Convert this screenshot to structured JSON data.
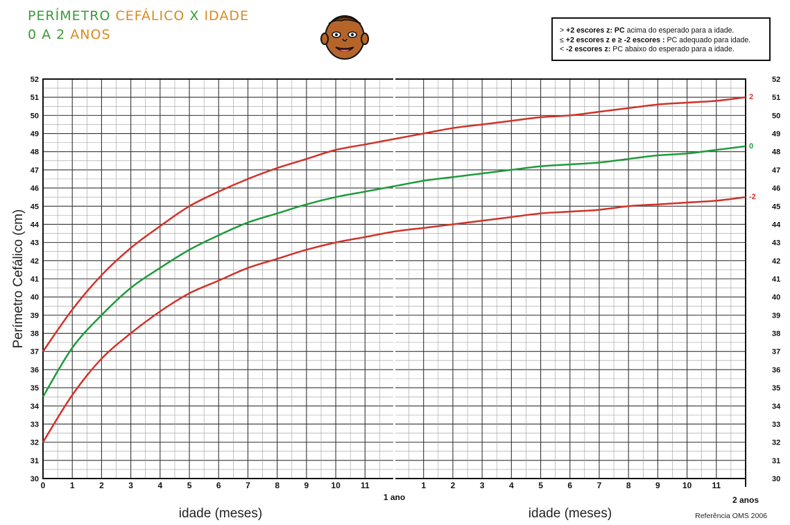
{
  "header": {
    "title_line1": [
      {
        "text": "PERÍMETRO ",
        "color": "#3a9a3a"
      },
      {
        "text": "CEFÁLICO ",
        "color": "#d98a1e"
      },
      {
        "text": "X ",
        "color": "#3a9a3a"
      },
      {
        "text": "IDADE",
        "color": "#d98a1e"
      }
    ],
    "title_line2": [
      {
        "text": "0 A 2 ",
        "color": "#3a9a3a"
      },
      {
        "text": "ANOS",
        "color": "#d98a1e"
      }
    ],
    "logo_icon": "baby-face-icon"
  },
  "legend": {
    "lines": [
      {
        "prefix": "> ",
        "bold": "+2 escores z: PC",
        "rest": " acima do esperado para a idade."
      },
      {
        "prefix": "≤ ",
        "bold": "+2 escores z e ≥ -2 escores :",
        "rest": " PC adequado para idade."
      },
      {
        "prefix": "< ",
        "bold": "-2 escores z:",
        "rest": " PC abaixo do esperado para a idade."
      }
    ]
  },
  "footer": {
    "reference": "Referência OMS 2006"
  },
  "chart_data": {
    "type": "line",
    "ylabel": "Perímetro Cefálico (cm)",
    "xlabel_left": "idade (meses)",
    "xlabel_right": "idade (meses)",
    "year_labels": [
      "1 ano",
      "2 anos"
    ],
    "ylim": [
      30,
      52
    ],
    "xlim": [
      0,
      24
    ],
    "x_tick_labels_first_year": [
      "0",
      "1",
      "2",
      "3",
      "4",
      "5",
      "6",
      "7",
      "8",
      "9",
      "10",
      "11"
    ],
    "x_tick_labels_second_year": [
      "1",
      "2",
      "3",
      "4",
      "5",
      "6",
      "7",
      "8",
      "9",
      "10",
      "11"
    ],
    "grid": true,
    "colors": {
      "plus2": "#d0322a",
      "median": "#1e9a3c",
      "minus2": "#d0322a",
      "grid": "#222222"
    },
    "series": [
      {
        "name": "2",
        "color": "#d0322a",
        "x": [
          0,
          1,
          2,
          3,
          4,
          5,
          6,
          7,
          8,
          9,
          10,
          11,
          12,
          13,
          14,
          15,
          16,
          17,
          18,
          19,
          20,
          21,
          22,
          23,
          24
        ],
        "y": [
          37.0,
          39.3,
          41.2,
          42.7,
          43.9,
          45.0,
          45.8,
          46.5,
          47.1,
          47.6,
          48.1,
          48.4,
          48.7,
          49.0,
          49.3,
          49.5,
          49.7,
          49.9,
          50.0,
          50.2,
          50.4,
          50.6,
          50.7,
          50.8,
          51.0
        ]
      },
      {
        "name": "0",
        "color": "#1e9a3c",
        "x": [
          0,
          1,
          2,
          3,
          4,
          5,
          6,
          7,
          8,
          9,
          10,
          11,
          12,
          13,
          14,
          15,
          16,
          17,
          18,
          19,
          20,
          21,
          22,
          23,
          24
        ],
        "y": [
          34.5,
          37.2,
          39.0,
          40.5,
          41.6,
          42.6,
          43.4,
          44.1,
          44.6,
          45.1,
          45.5,
          45.8,
          46.1,
          46.4,
          46.6,
          46.8,
          47.0,
          47.2,
          47.3,
          47.4,
          47.6,
          47.8,
          47.9,
          48.1,
          48.3
        ]
      },
      {
        "name": "-2",
        "color": "#d0322a",
        "x": [
          0,
          1,
          2,
          3,
          4,
          5,
          6,
          7,
          8,
          9,
          10,
          11,
          12,
          13,
          14,
          15,
          16,
          17,
          18,
          19,
          20,
          21,
          22,
          23,
          24
        ],
        "y": [
          32.0,
          34.6,
          36.6,
          38.0,
          39.2,
          40.2,
          40.9,
          41.6,
          42.1,
          42.6,
          43.0,
          43.3,
          43.6,
          43.8,
          44.0,
          44.2,
          44.4,
          44.6,
          44.7,
          44.8,
          45.0,
          45.1,
          45.2,
          45.3,
          45.5
        ]
      }
    ]
  }
}
